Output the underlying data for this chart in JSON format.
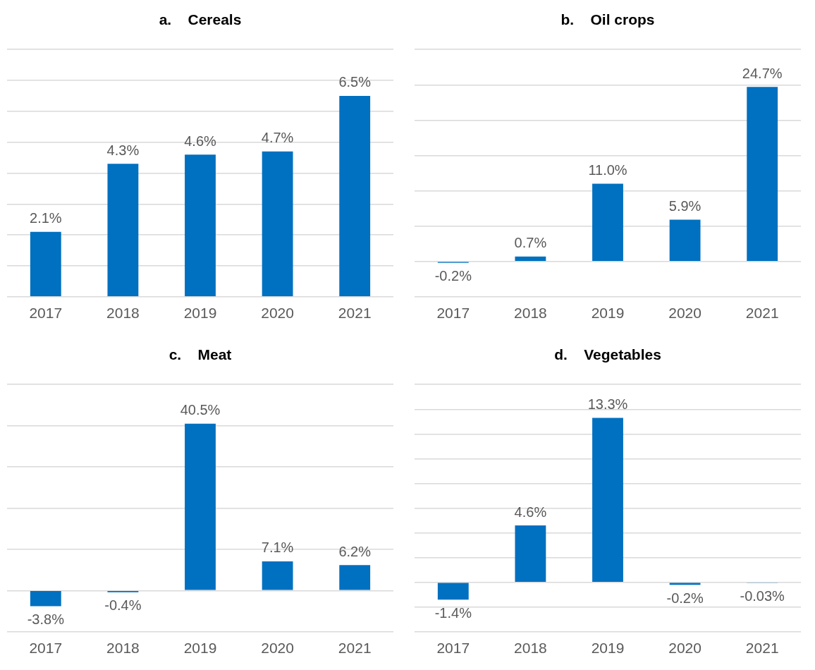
{
  "chart_data": [
    {
      "type": "bar",
      "title": "a.    Cereals",
      "categories": [
        "2017",
        "2018",
        "2019",
        "2020",
        "2021"
      ],
      "values": [
        2.1,
        4.3,
        4.6,
        4.7,
        6.5
      ],
      "value_labels": [
        "2.1%",
        "4.3%",
        "4.6%",
        "4.7%",
        "6.5%"
      ],
      "color": "#0070c0",
      "grid": "y",
      "tick_labels": "x",
      "legend": false
    },
    {
      "type": "bar",
      "title": "b.    Oil crops",
      "categories": [
        "2017",
        "2018",
        "2019",
        "2020",
        "2021"
      ],
      "values": [
        -0.2,
        0.7,
        11.0,
        5.9,
        24.7
      ],
      "value_labels": [
        "-0.2%",
        "0.7%",
        "11.0%",
        "5.9%",
        "24.7%"
      ],
      "color": "#0070c0",
      "grid": "y",
      "tick_labels": "x",
      "legend": false
    },
    {
      "type": "bar",
      "title": "c.    Meat",
      "categories": [
        "2017",
        "2018",
        "2019",
        "2020",
        "2021"
      ],
      "values": [
        -3.8,
        -0.4,
        40.5,
        7.1,
        6.2
      ],
      "value_labels": [
        "-3.8%",
        "-0.4%",
        "40.5%",
        "7.1%",
        "6.2%"
      ],
      "color": "#0070c0",
      "grid": "y",
      "tick_labels": "x",
      "legend": false
    },
    {
      "type": "bar",
      "title": "d.    Vegetables",
      "categories": [
        "2017",
        "2018",
        "2019",
        "2020",
        "2021"
      ],
      "values": [
        -1.4,
        4.6,
        13.3,
        -0.2,
        -0.03
      ],
      "value_labels": [
        "-1.4%",
        "4.6%",
        "13.3%",
        "-0.2%",
        "-0.03%"
      ],
      "color": "#0070c0",
      "grid": "y",
      "tick_labels": "x",
      "legend": false
    }
  ]
}
